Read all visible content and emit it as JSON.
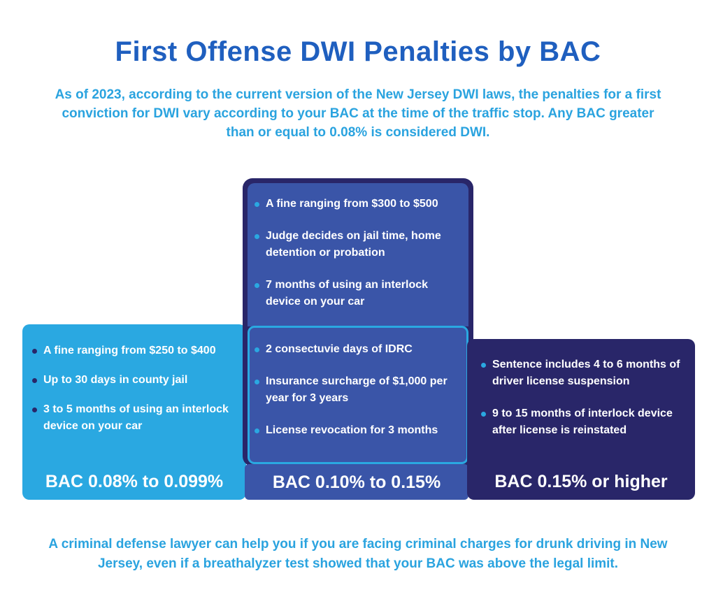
{
  "title": "First Offense DWI Penalties by BAC",
  "intro": "As of 2023, according to the current version of the New Jersey DWI laws, the penalties for a first conviction for DWI vary according to your BAC at the time of the traffic stop. Any BAC greater than or equal to 0.08% is considered DWI.",
  "columns": [
    {
      "label": "BAC 0.08% to 0.099%",
      "items": [
        "A fine ranging from $250 to $400",
        "Up to 30 days in county jail",
        "3 to 5 months of using an interlock device on your car"
      ]
    },
    {
      "label": "BAC 0.10% to 0.15%",
      "items_top": [
        "A fine ranging from $300 to $500",
        "Judge decides on jail time, home detention or probation",
        "7 months of using an interlock device on your car"
      ],
      "items_bottom": [
        "2 consectuvie days of IDRC",
        "Insurance surcharge of $1,000 per year for 3 years",
        "License revocation for 3 months"
      ]
    },
    {
      "label": "BAC 0.15% or higher",
      "items": [
        "Sentence includes 4 to 6 months of driver license suspension",
        "9 to 15 months of interlock device after license is reinstated"
      ]
    }
  ],
  "outro": "A criminal defense lawyer can help you if you are facing criminal charges for drunk driving in New Jersey, even if a breathalyzer test showed that your BAC was above the legal limit.",
  "colors": {
    "title": "#1f5fbf",
    "accent": "#2aa8e1",
    "mid_blue": "#3a55a8",
    "dark_navy": "#292669"
  }
}
